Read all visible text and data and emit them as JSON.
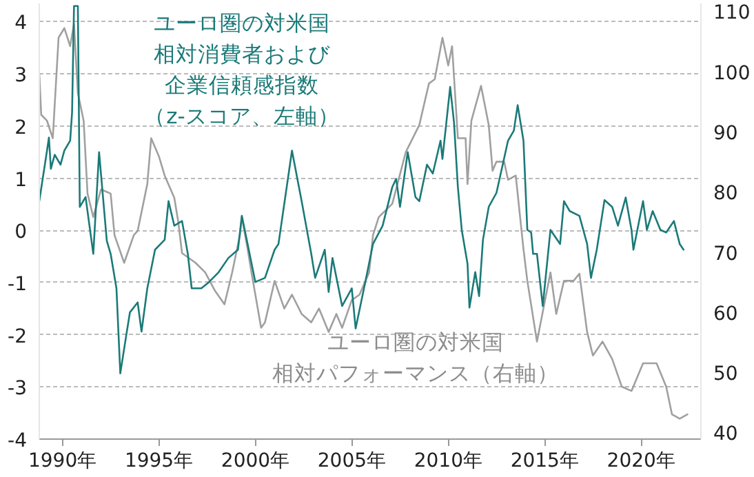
{
  "chart_data": {
    "type": "line",
    "xlim": [
      1988.8,
      2023.1
    ],
    "xticks": [
      {
        "value": 1990,
        "label": "1990年"
      },
      {
        "value": 1995,
        "label": "1995年"
      },
      {
        "value": 2000,
        "label": "2000年"
      },
      {
        "value": 2005,
        "label": "2005年"
      },
      {
        "value": 2010,
        "label": "2010年"
      },
      {
        "value": 2015,
        "label": "2015年"
      },
      {
        "value": 2020,
        "label": "2020年"
      }
    ],
    "ylim": [
      -4,
      4.35
    ],
    "yticks": [
      -4,
      -3,
      -2,
      -1,
      0,
      1,
      2,
      3,
      4
    ],
    "y2lim": [
      38.9,
      111.3
    ],
    "y2ticks": [
      40,
      50,
      60,
      70,
      80,
      90,
      100,
      110
    ],
    "grid": "y",
    "marker": "none",
    "line_style": "solid",
    "series": [
      {
        "name": "ユーロ圏の対米国相対パフォーマンス（右軸）",
        "color": "#a0a0a0",
        "axis": "y2",
        "x": [
          1988.8,
          1988.9,
          1989.2,
          1989.5,
          1989.8,
          1990.1,
          1990.4,
          1990.6,
          1990.8,
          1991.1,
          1991.3,
          1991.6,
          1992.0,
          1992.5,
          1992.7,
          1993.2,
          1993.7,
          1993.9,
          1994.4,
          1994.6,
          1995.0,
          1995.3,
          1995.8,
          1996.0,
          1996.2,
          1996.9,
          1997.4,
          1997.9,
          1998.4,
          1998.8,
          1999.2,
          1999.3,
          1999.6,
          1999.8,
          2000.3,
          2000.5,
          2001.0,
          2001.5,
          2001.9,
          2002.4,
          2002.9,
          2003.3,
          2003.8,
          2004.2,
          2004.5,
          2005.0,
          2005.4,
          2005.9,
          2006.1,
          2006.4,
          2007.1,
          2007.8,
          2008.5,
          2009.0,
          2009.3,
          2009.7,
          2010.0,
          2010.2,
          2010.5,
          2010.9,
          2011.0,
          2011.2,
          2011.7,
          2012.1,
          2012.3,
          2012.5,
          2012.9,
          2013.1,
          2013.5,
          2013.9,
          2014.1,
          2014.6,
          2015.3,
          2015.6,
          2016.0,
          2016.5,
          2016.8,
          2017.2,
          2017.5,
          2018.0,
          2018.5,
          2019.0,
          2019.5,
          2020.1,
          2020.8,
          2021.3,
          2021.6,
          2022.0,
          2022.4
        ],
        "values": [
          99.6,
          92.8,
          91.8,
          88.9,
          105.6,
          107.2,
          104.2,
          107.9,
          96.4,
          91.8,
          79.7,
          75.8,
          80.4,
          79.7,
          72.8,
          68.2,
          72.8,
          73.5,
          81.3,
          88.9,
          85.9,
          82.7,
          79.0,
          75.1,
          69.8,
          68.2,
          66.6,
          63.6,
          61.3,
          66.6,
          72.8,
          75.8,
          70.5,
          66.6,
          57.4,
          58.3,
          65.2,
          60.6,
          62.9,
          59.7,
          58.3,
          60.6,
          56.7,
          59.7,
          57.4,
          62.0,
          62.9,
          66.6,
          72.8,
          75.8,
          78.0,
          86.6,
          91.1,
          98.0,
          98.7,
          105.6,
          101.0,
          104.2,
          88.9,
          88.9,
          81.3,
          91.8,
          97.6,
          91.1,
          83.5,
          85.0,
          85.0,
          82.0,
          82.7,
          70.5,
          65.2,
          55.1,
          66.6,
          59.7,
          65.2,
          65.2,
          66.4,
          56.7,
          52.8,
          55.1,
          52.2,
          47.6,
          46.9,
          51.5,
          51.5,
          47.6,
          43.0,
          42.3,
          43.0
        ]
      },
      {
        "name": "ユーロ圏の対米国相対消費者および企業信頼感指数（z-スコア、左軸）",
        "color": "#1a7a78",
        "x": [
          1988.8,
          1989.2,
          1989.3,
          1989.4,
          1989.6,
          1989.9,
          1990.1,
          1990.4,
          1990.5,
          1990.6,
          1990.8,
          1990.9,
          1991.2,
          1991.6,
          1991.9,
          1992.3,
          1992.5,
          1992.8,
          1993.0,
          1993.3,
          1993.5,
          1993.9,
          1994.1,
          1994.4,
          1994.8,
          1995.3,
          1995.5,
          1995.8,
          1996.2,
          1996.5,
          1996.7,
          1997.2,
          1997.6,
          1998.1,
          1998.6,
          1999.1,
          1999.3,
          1999.6,
          2000.0,
          2000.5,
          2001.0,
          2001.2,
          2001.9,
          2002.4,
          2002.9,
          2003.1,
          2003.6,
          2003.8,
          2004.0,
          2004.5,
          2005.0,
          2005.2,
          2005.7,
          2006.1,
          2006.6,
          2007.1,
          2007.3,
          2007.5,
          2007.9,
          2008.3,
          2008.5,
          2008.9,
          2009.2,
          2009.6,
          2009.7,
          2010.1,
          2010.3,
          2010.5,
          2010.7,
          2011.0,
          2011.1,
          2011.4,
          2011.6,
          2011.8,
          2012.1,
          2012.5,
          2013.1,
          2013.4,
          2013.6,
          2013.9,
          2014.1,
          2014.3,
          2014.4,
          2014.6,
          2014.9,
          2015.1,
          2015.3,
          2015.8,
          2016.0,
          2016.3,
          2016.8,
          2017.2,
          2017.4,
          2017.7,
          2018.1,
          2018.5,
          2018.8,
          2019.2,
          2019.5,
          2019.6,
          2020.1,
          2020.3,
          2020.6,
          2021.0,
          2021.3,
          2021.7,
          2022.0,
          2022.2
        ],
        "values": [
          0.56,
          1.53,
          1.78,
          1.18,
          1.45,
          1.26,
          1.53,
          1.72,
          2.26,
          4.3,
          4.3,
          0.45,
          0.64,
          -0.45,
          1.5,
          -0.2,
          -0.45,
          -1.11,
          -2.74,
          -2.03,
          -1.57,
          -1.38,
          -1.94,
          -1.11,
          -0.37,
          -0.18,
          0.56,
          0.09,
          0.18,
          -0.45,
          -1.11,
          -1.11,
          -0.99,
          -0.8,
          -0.53,
          -0.37,
          0.28,
          -0.26,
          -0.99,
          -0.91,
          -0.37,
          -0.26,
          1.53,
          0.56,
          -0.45,
          -0.91,
          -0.37,
          -1.18,
          -0.53,
          -1.45,
          -1.11,
          -1.88,
          -0.99,
          -0.26,
          0.09,
          0.83,
          0.99,
          0.45,
          1.5,
          0.64,
          0.56,
          1.26,
          1.09,
          1.72,
          1.37,
          2.75,
          2.07,
          0.83,
          0.01,
          -0.64,
          -1.48,
          -0.8,
          -1.26,
          -0.18,
          0.45,
          0.72,
          1.72,
          1.91,
          2.4,
          1.72,
          0.01,
          -0.04,
          -0.45,
          -0.45,
          -1.45,
          -0.72,
          0.01,
          -0.26,
          0.56,
          0.37,
          0.28,
          -0.26,
          -0.91,
          -0.37,
          0.58,
          0.45,
          0.09,
          0.63,
          0.01,
          -0.37,
          0.56,
          0.01,
          0.37,
          0.01,
          -0.04,
          0.18,
          -0.26,
          -0.37
        ]
      }
    ]
  }
}
